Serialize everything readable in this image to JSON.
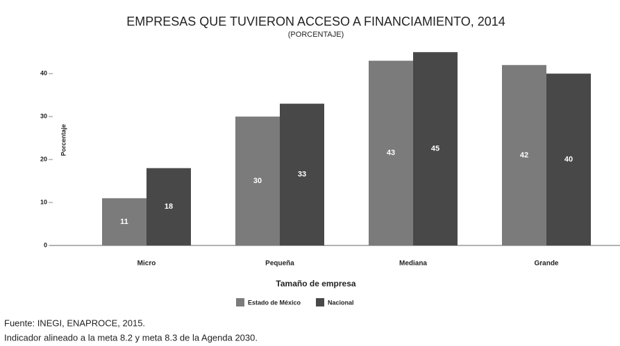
{
  "chart_data": {
    "type": "bar",
    "title": "EMPRESAS QUE TUVIERON ACCESO A FINANCIAMIENTO, 2014",
    "subtitle": "(PORCENTAJE)",
    "y_label": "Porcentaje",
    "x_label": "Tamaño de empresa",
    "categories": [
      "Micro",
      "Pequeña",
      "Mediana",
      "Grande"
    ],
    "series": [
      {
        "name": "Estado de México",
        "color": "#7b7b7b",
        "values": [
          11,
          30,
          43,
          42
        ]
      },
      {
        "name": "Nacional",
        "color": "#484848",
        "values": [
          18,
          33,
          45,
          40
        ]
      }
    ],
    "ylim": [
      0,
      46
    ],
    "yticks": [
      0,
      10,
      20,
      30,
      40
    ],
    "notes": [
      "Fuente: INEGI, ENAPROCE, 2015.",
      "Indicador alineado a la meta 8.2 y meta 8.3 de la Agenda 2030."
    ]
  }
}
